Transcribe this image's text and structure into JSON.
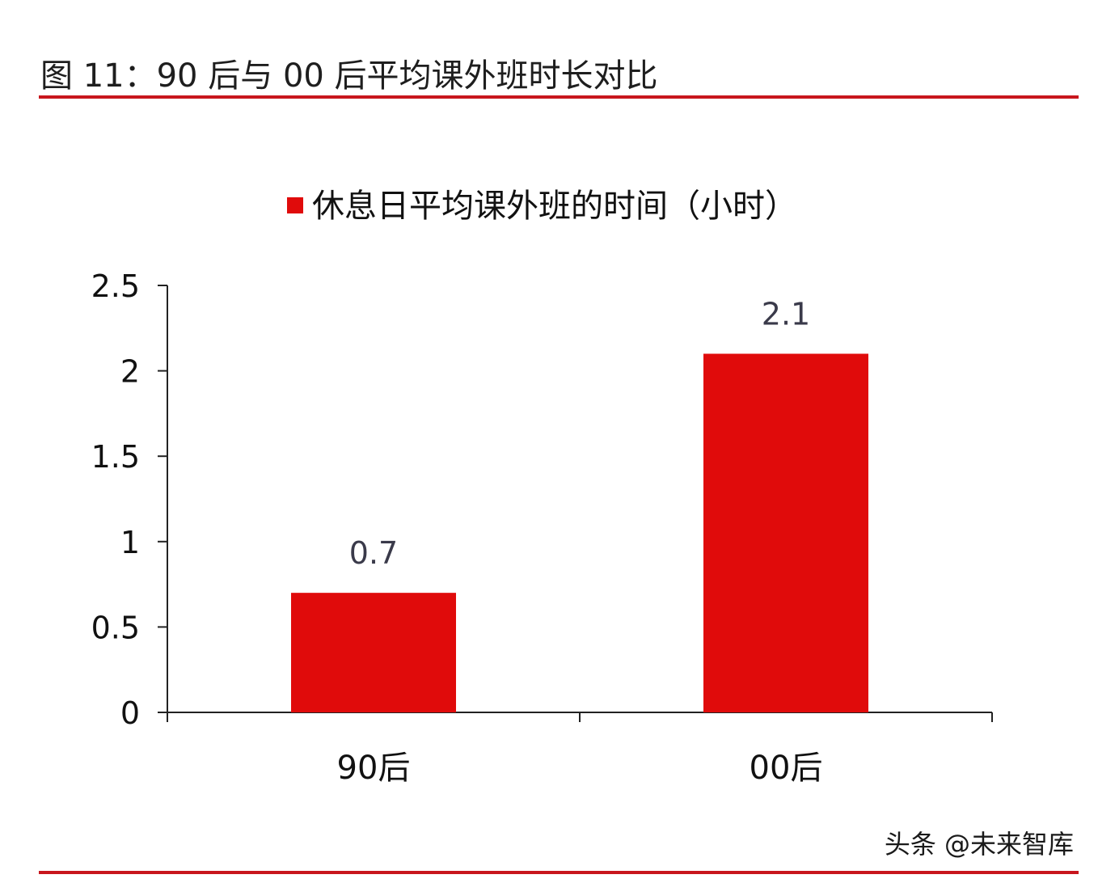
{
  "header": {
    "figure_title": "图 11：90 后与 00 后平均课外班时长对比"
  },
  "chart_data": {
    "type": "bar",
    "categories": [
      "90后",
      "00后"
    ],
    "series": [
      {
        "name": "休息日平均课外班的时间（小时）",
        "values": [
          0.7,
          2.1
        ],
        "value_labels": [
          "0.7",
          "2.1"
        ],
        "color": "#e00b0b"
      }
    ],
    "ylim": [
      0,
      2.5
    ],
    "yticks": [
      0,
      0.5,
      1,
      1.5,
      2,
      2.5
    ],
    "ytick_labels": [
      "0",
      "0.5",
      "1",
      "1.5",
      "2",
      "2.5"
    ],
    "grid": false,
    "legend_position": "top-center",
    "title": "",
    "xlabel": "",
    "ylabel": ""
  },
  "footer": {
    "watermark": "头条 @未来智库"
  },
  "colors": {
    "accent_rule": "#c8161d",
    "bar": "#e00b0b",
    "value_label": "#3a3a4a",
    "axis": "#222222"
  }
}
